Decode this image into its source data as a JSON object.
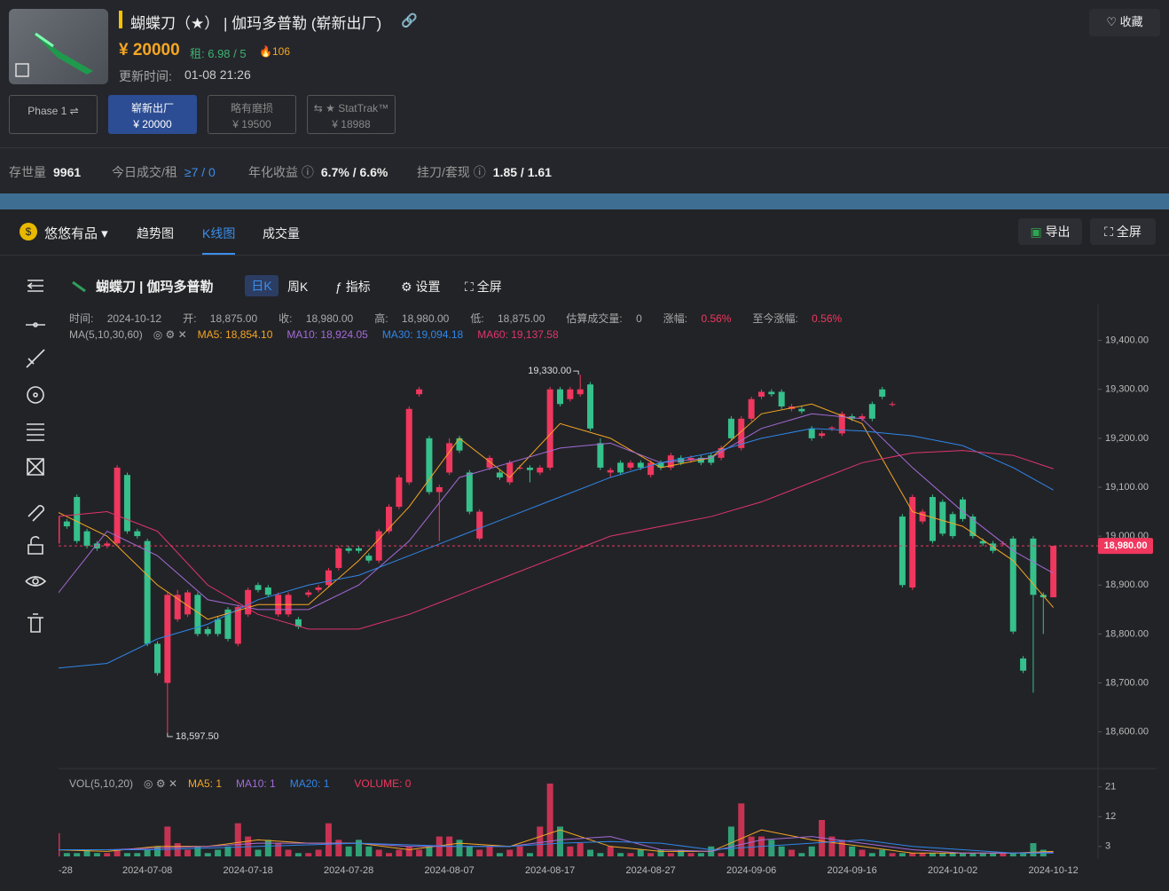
{
  "header": {
    "title": "蝴蝶刀（★） | 伽玛多普勒 (崭新出厂)",
    "price": "¥ 20000",
    "rent": "租: 6.98 / 5",
    "heat": "106",
    "update_label": "更新时间:",
    "update_time": "01-08 21:26",
    "favorite": "收藏"
  },
  "variants": [
    {
      "label": "Phase 1 ⇌"
    },
    {
      "label": "崭新出厂",
      "price": "¥ 20000"
    },
    {
      "label": "略有磨损",
      "price": "¥ 19500"
    },
    {
      "label": "⇆ ★ StatTrak™",
      "price": "¥ 18988"
    }
  ],
  "stats": [
    {
      "label": "存世量",
      "value": "9961"
    },
    {
      "label": "今日成交/租",
      "value": "≥7 / 0"
    },
    {
      "label": "年化收益",
      "value": "6.7% / 6.6%"
    },
    {
      "label": "挂刀/套现",
      "value": "1.85 / 1.61"
    }
  ],
  "tabs": {
    "brand": "悠悠有品",
    "items": [
      "趋势图",
      "K线图",
      "成交量"
    ],
    "actions": [
      "导出",
      "全屏"
    ]
  },
  "toolbar": {
    "name": "蝴蝶刀 | 伽玛多普勒",
    "buttons": [
      "日K",
      "周K",
      "指标",
      "设置",
      "全屏"
    ]
  },
  "chart_data": {
    "type": "candlestick",
    "info": [
      {
        "label": "时间:",
        "value": "2024-10-12"
      },
      {
        "label": "开:",
        "value": "18,875.00"
      },
      {
        "label": "收:",
        "value": "18,980.00"
      },
      {
        "label": "高:",
        "value": "18,980.00"
      },
      {
        "label": "低:",
        "value": "18,875.00"
      },
      {
        "label": "估算成交量:",
        "value": "0"
      },
      {
        "label": "涨幅:",
        "value": "0.56%"
      },
      {
        "label": "至今涨幅:",
        "value": "0.56%"
      }
    ],
    "ma_title": "MA(5,10,30,60)",
    "up_color": "#f0375e",
    "down_color": "#35c08c",
    "categories": [
      "-28",
      null,
      null,
      null,
      null,
      null,
      null,
      null,
      null,
      "2024-07-08",
      null,
      null,
      null,
      null,
      null,
      null,
      null,
      null,
      null,
      "2024-07-18",
      null,
      null,
      null,
      null,
      null,
      null,
      null,
      null,
      null,
      "2024-07-28",
      null,
      null,
      null,
      null,
      null,
      null,
      null,
      null,
      null,
      "2024-08-07",
      null,
      null,
      null,
      null,
      null,
      null,
      null,
      null,
      null,
      "2024-08-17",
      null,
      null,
      null,
      null,
      null,
      null,
      null,
      null,
      null,
      "2024-08-27",
      null,
      null,
      null,
      null,
      null,
      null,
      null,
      null,
      null,
      "2024-09-06",
      null,
      null,
      null,
      null,
      null,
      null,
      null,
      null,
      null,
      "2024-09-16",
      null,
      null,
      null,
      null,
      null,
      null,
      null,
      null,
      null,
      "2024-10-02",
      null,
      null,
      null,
      null,
      null,
      null,
      null,
      null,
      null,
      "2024-10-12"
    ],
    "candles": [
      [
        18985,
        19045,
        18980,
        19040
      ],
      [
        19030,
        19035,
        19015,
        19020
      ],
      [
        19080,
        19085,
        18985,
        18990
      ],
      [
        19010,
        19015,
        18975,
        18980
      ],
      [
        18985,
        18990,
        18970,
        18975
      ],
      [
        18980,
        18990,
        18975,
        18985
      ],
      [
        18985,
        19145,
        18980,
        19140
      ],
      [
        19125,
        19130,
        19005,
        19010
      ],
      [
        19010,
        19015,
        18995,
        19000
      ],
      [
        18990,
        18995,
        18775,
        18780
      ],
      [
        18780,
        18785,
        18715,
        18720
      ],
      [
        18700,
        18885,
        18597.5,
        18880
      ],
      [
        18830,
        18890,
        18825,
        18880
      ],
      [
        18840,
        18890,
        18835,
        18885
      ],
      [
        18880,
        18885,
        18795,
        18800
      ],
      [
        18810,
        18815,
        18795,
        18800
      ],
      [
        18830,
        18835,
        18795,
        18800
      ],
      [
        18850,
        18855,
        18785,
        18790
      ],
      [
        18780,
        18860,
        18775,
        18855
      ],
      [
        18840,
        18895,
        18835,
        18890
      ],
      [
        18900,
        18905,
        18885,
        18890
      ],
      [
        18895,
        18900,
        18875,
        18880
      ],
      [
        18840,
        18885,
        18835,
        18880
      ],
      [
        18840,
        18885,
        18835,
        18880
      ],
      [
        18830,
        18835,
        18810,
        18815
      ],
      [
        18880,
        18890,
        18875,
        18885
      ],
      [
        18890,
        18900,
        18885,
        18895
      ],
      [
        18900,
        18935,
        18895,
        18930
      ],
      [
        18935,
        18980,
        18930,
        18975
      ],
      [
        18975,
        18980,
        18965,
        18970
      ],
      [
        18975,
        18980,
        18965,
        18970
      ],
      [
        18960,
        18965,
        18945,
        18950
      ],
      [
        18950,
        19015,
        18945,
        19010
      ],
      [
        19010,
        19065,
        19005,
        19060
      ],
      [
        19060,
        19125,
        19055,
        19120
      ],
      [
        19110,
        19265,
        19105,
        19260
      ],
      [
        19290,
        19305,
        19285,
        19300
      ],
      [
        19200,
        19205,
        19085,
        19090
      ],
      [
        19090,
        19105,
        18990,
        19100
      ],
      [
        19130,
        19200,
        19125,
        19190
      ],
      [
        19200,
        19205,
        19170,
        19175
      ],
      [
        19130,
        19135,
        19045,
        19050
      ],
      [
        18995,
        19055,
        18990,
        19050
      ],
      [
        19140,
        19165,
        19135,
        19160
      ],
      [
        19130,
        19135,
        19115,
        19120
      ],
      [
        19110,
        19155,
        19105,
        19150
      ],
      [
        19140,
        19145,
        19135,
        19140
      ],
      [
        19140,
        19145,
        19110,
        19135
      ],
      [
        19130,
        19145,
        19125,
        19140
      ],
      [
        19140,
        19305,
        19135,
        19300
      ],
      [
        19300,
        19305,
        19265,
        19270
      ],
      [
        19280,
        19305,
        19275,
        19300
      ],
      [
        19290,
        19330,
        19285,
        19300
      ],
      [
        19310,
        19315,
        19215,
        19220
      ],
      [
        19190,
        19200,
        19135,
        19140
      ],
      [
        19130,
        19140,
        19120,
        19135
      ],
      [
        19150,
        19155,
        19125,
        19130
      ],
      [
        19140,
        19155,
        19135,
        19150
      ],
      [
        19150,
        19155,
        19135,
        19140
      ],
      [
        19125,
        19155,
        19120,
        19150
      ],
      [
        19150,
        19155,
        19135,
        19140
      ],
      [
        19140,
        19170,
        19135,
        19165
      ],
      [
        19160,
        19165,
        19145,
        19150
      ],
      [
        19155,
        19165,
        19150,
        19160
      ],
      [
        19160,
        19165,
        19145,
        19150
      ],
      [
        19165,
        19170,
        19145,
        19150
      ],
      [
        19160,
        19185,
        19155,
        19180
      ],
      [
        19240,
        19245,
        19195,
        19200
      ],
      [
        19180,
        19245,
        19175,
        19240
      ],
      [
        19240,
        19285,
        19235,
        19280
      ],
      [
        19285,
        19300,
        19280,
        19295
      ],
      [
        19295,
        19300,
        19285,
        19290
      ],
      [
        19295,
        19300,
        19260,
        19265
      ],
      [
        19260,
        19270,
        19255,
        19265
      ],
      [
        19260,
        19265,
        19250,
        19255
      ],
      [
        19220,
        19225,
        19195,
        19200
      ],
      [
        19205,
        19215,
        19200,
        19210
      ],
      [
        19220,
        19225,
        19215,
        19222
      ],
      [
        19210,
        19255,
        19205,
        19250
      ],
      [
        19245,
        19250,
        19235,
        19240
      ],
      [
        19240,
        19250,
        19235,
        19245
      ],
      [
        19270,
        19275,
        19235,
        19240
      ],
      [
        19300,
        19305,
        19280,
        19285
      ],
      [
        19270,
        19275,
        19265,
        19270
      ],
      [
        19040,
        19045,
        18895,
        18900
      ],
      [
        18895,
        19085,
        18890,
        19080
      ],
      [
        19030,
        19055,
        19025,
        19050
      ],
      [
        19080,
        19085,
        18985,
        18990
      ],
      [
        19070,
        19075,
        19000,
        19005
      ],
      [
        19045,
        19050,
        18995,
        19000
      ],
      [
        19075,
        19080,
        19030,
        19035
      ],
      [
        19040,
        19045,
        18995,
        19000
      ],
      [
        18990,
        18995,
        18980,
        18985
      ],
      [
        18985,
        18990,
        18965,
        18970
      ],
      [
        18985,
        18990,
        18980,
        18985
      ],
      [
        18995,
        19000,
        18800,
        18805
      ],
      [
        18750,
        18755,
        18720,
        18725
      ],
      [
        18995,
        19000,
        18680,
        18880
      ],
      [
        18880,
        18885,
        18800,
        18875
      ],
      [
        18875,
        18980,
        18875,
        18980
      ]
    ],
    "ylim": [
      18525,
      19470
    ],
    "yticks": [
      {
        "value": 19400,
        "label": "19,400.00"
      },
      {
        "value": 19300,
        "label": "19,300.00"
      },
      {
        "value": 19200,
        "label": "19,200.00"
      },
      {
        "value": 19100,
        "label": "19,100.00"
      },
      {
        "value": 19000,
        "label": "19,000.00"
      },
      {
        "value": 18900,
        "label": "18,900.00"
      },
      {
        "value": 18800,
        "label": "18,800.00"
      },
      {
        "value": 18700,
        "label": "18,700.00"
      },
      {
        "value": 18600,
        "label": "18,600.00"
      }
    ],
    "high_label": "19,330.00",
    "low_label": "18,597.50",
    "last_label": "18,980.00",
    "ma_x": [
      0,
      5,
      10,
      15,
      20,
      25,
      30,
      35,
      40,
      45,
      50,
      55,
      60,
      65,
      70,
      75,
      80,
      85,
      90,
      95,
      99
    ],
    "ma_series": [
      {
        "name": "MA5: 18,854.10",
        "color": "#f5a623",
        "values": [
          19050,
          19000,
          18900,
          18830,
          18860,
          18860,
          18950,
          19060,
          19200,
          19120,
          19230,
          19200,
          19140,
          19160,
          19250,
          19270,
          19230,
          19050,
          19020,
          18950,
          18854.1
        ]
      },
      {
        "name": "MA10: 18,924.05",
        "color": "#a46bd6",
        "values": [
          18880,
          19010,
          18960,
          18870,
          18850,
          18850,
          18900,
          18990,
          19120,
          19150,
          19180,
          19190,
          19150,
          19160,
          19220,
          19250,
          19240,
          19140,
          19050,
          18970,
          18924.05
        ]
      },
      {
        "name": "MA30: 19,094.18",
        "color": "#2f86e8",
        "values": [
          18730,
          18740,
          18790,
          18820,
          18870,
          18900,
          18920,
          18960,
          19000,
          19040,
          19080,
          19120,
          19150,
          19170,
          19200,
          19220,
          19215,
          19205,
          19185,
          19140,
          19094.18
        ]
      },
      {
        "name": "MA60: 19,137.58",
        "color": "#e0356b",
        "values": [
          19040,
          19050,
          19010,
          18900,
          18840,
          18810,
          18810,
          18840,
          18880,
          18920,
          18960,
          19000,
          19020,
          19040,
          19070,
          19110,
          19150,
          19170,
          19175,
          19165,
          19137.58
        ]
      }
    ],
    "vol_title": "VOL(5,10,20)",
    "volume": [
      7,
      1,
      1,
      2,
      1,
      1,
      2,
      1,
      1,
      2,
      3,
      9,
      4,
      2,
      3,
      1,
      2,
      3,
      10,
      6,
      2,
      5,
      4,
      2,
      1,
      1,
      2,
      10,
      5,
      3,
      5,
      3,
      2,
      1,
      2,
      3,
      2,
      3,
      6,
      6,
      5,
      3,
      2,
      3,
      1,
      2,
      3,
      1,
      9,
      22,
      9,
      3,
      4,
      2,
      1,
      3,
      1,
      1,
      2,
      1,
      2,
      1,
      2,
      1,
      1,
      3,
      1,
      9,
      16,
      6,
      6,
      5,
      3,
      2,
      1,
      3,
      11,
      6,
      5,
      3,
      2,
      1,
      2,
      1,
      1,
      1,
      1,
      1,
      1,
      1,
      1,
      1,
      1,
      1,
      1,
      1,
      1,
      4,
      2,
      0
    ],
    "vol_ylim": [
      0,
      26
    ],
    "vol_yticks": [
      21,
      12,
      3
    ],
    "vol_ma": [
      {
        "name": "MA5: 1",
        "color": "#f5a623",
        "values": [
          2,
          1.5,
          3,
          3,
          5,
          4,
          4,
          2,
          4,
          3,
          8,
          3,
          1.5,
          1.5,
          8,
          5,
          3,
          1,
          1,
          1,
          1.5
        ]
      },
      {
        "name": "MA10: 1",
        "color": "#a46bd6",
        "values": [
          2,
          2,
          2.5,
          3,
          4,
          4,
          4,
          3,
          3,
          3,
          5,
          6,
          2,
          1.5,
          5,
          6,
          4,
          2,
          1,
          1,
          1.2
        ]
      },
      {
        "name": "MA20: 1",
        "color": "#2f86e8",
        "values": [
          2,
          2,
          2,
          2.5,
          3,
          3.5,
          4,
          3.5,
          3,
          3,
          4,
          4.5,
          4,
          2,
          3,
          4,
          5,
          3,
          2,
          1,
          1
        ]
      }
    ],
    "vol_label": "VOLUME: 0"
  }
}
